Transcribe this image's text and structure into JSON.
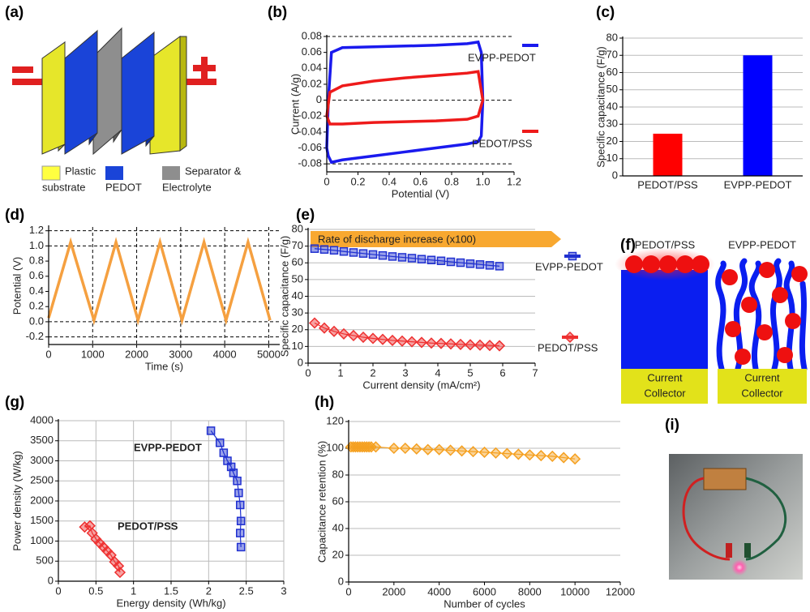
{
  "chart_data": [
    {
      "type": "line",
      "label": "(b)",
      "xlabel": "Potential (V)",
      "ylabel": "Current (A/g)",
      "xlim": [
        0,
        1.2
      ],
      "xticks": [
        0,
        0.2,
        0.4,
        0.6,
        0.8,
        {
          "value": 1,
          "label": "1.0"
        },
        1.2
      ],
      "ylim": [
        -0.09,
        0.08
      ],
      "yticks": [
        -0.08,
        -0.06,
        -0.04,
        -0.02,
        0,
        0.02,
        0.04,
        0.06,
        0.08
      ],
      "reference_lines": [
        0.08,
        0,
        -0.08
      ],
      "series": [
        {
          "name": "EVPP-PEDOT",
          "color": "#1a1aee",
          "x": [
            0,
            0.01,
            0.03,
            0.1,
            0.3,
            0.5,
            0.7,
            0.9,
            0.97,
            0.99,
            1.0,
            0.99,
            0.97,
            0.9,
            0.7,
            0.5,
            0.3,
            0.1,
            0.03,
            0.01,
            0
          ],
          "values": [
            -0.06,
            0.0,
            0.06,
            0.066,
            0.067,
            0.068,
            0.069,
            0.071,
            0.073,
            0.06,
            0.0,
            -0.045,
            -0.052,
            -0.055,
            -0.06,
            -0.065,
            -0.07,
            -0.075,
            -0.078,
            -0.07,
            -0.06
          ]
        },
        {
          "name": "PEDOT/PSS",
          "color": "#ee1a1a",
          "x": [
            0,
            0.02,
            0.1,
            0.3,
            0.5,
            0.7,
            0.9,
            0.97,
            1.0,
            0.97,
            0.9,
            0.7,
            0.5,
            0.3,
            0.1,
            0.02,
            0
          ],
          "values": [
            -0.02,
            0.01,
            0.018,
            0.024,
            0.028,
            0.031,
            0.034,
            0.036,
            0.0,
            -0.02,
            -0.024,
            -0.026,
            -0.027,
            -0.028,
            -0.03,
            -0.03,
            -0.02
          ]
        }
      ]
    },
    {
      "type": "bar",
      "label": "(c)",
      "ylabel": "Specific capacitance (F/g)",
      "categories": [
        "PEDOT/PSS",
        "EVPP-PEDOT"
      ],
      "values": [
        24.5,
        70
      ],
      "colors": [
        "#ff0000",
        "#0000ff"
      ],
      "ylim": [
        0,
        80
      ],
      "yticks": [
        0,
        10,
        20,
        30,
        40,
        50,
        60,
        70,
        80
      ],
      "grid": "y"
    },
    {
      "type": "line",
      "label": "(d)",
      "xlabel": "Time (s)",
      "ylabel": "Potential (V)",
      "xlim": [
        0,
        5250
      ],
      "xticks": [
        0,
        1000,
        2000,
        3000,
        4000,
        5000
      ],
      "ylim": [
        -0.3,
        1.25
      ],
      "yticks": [
        -0.2,
        {
          "value": 0,
          "label": "0.0"
        },
        0.2,
        0.4,
        0.6,
        0.8,
        {
          "value": 1,
          "label": "1.0"
        },
        1.2
      ],
      "grid": "x",
      "reference_lines": [
        1.2,
        1,
        0,
        -0.2
      ],
      "series": [
        {
          "color": "#f5a040",
          "x": [
            0,
            500,
            1030,
            1530,
            2030,
            2530,
            3030,
            3530,
            4030,
            4530,
            5030
          ],
          "values": [
            0.05,
            1.05,
            0.02,
            1.05,
            0.02,
            1.05,
            0.02,
            1.05,
            0.02,
            1.05,
            0.02
          ]
        }
      ]
    },
    {
      "type": "line",
      "label": "(e)",
      "xlabel": "Current density (mA/cm²)",
      "ylabel": "Specific capacitance (F/g)",
      "annotation": "Rate of discharge increase (x100)",
      "xlim": [
        0,
        7
      ],
      "xticks": [
        0,
        1,
        2,
        3,
        4,
        5,
        6,
        7
      ],
      "ylim": [
        0,
        80
      ],
      "yticks": [
        0,
        10,
        20,
        30,
        40,
        50,
        60,
        70,
        80
      ],
      "grid": "y",
      "series": [
        {
          "name": "EVPP-PEDOT",
          "color": "#2030d0",
          "marker": "square",
          "x": [
            0.2,
            0.5,
            0.8,
            1.1,
            1.4,
            1.7,
            2.0,
            2.3,
            2.6,
            2.9,
            3.2,
            3.5,
            3.8,
            4.1,
            4.4,
            4.7,
            5.0,
            5.3,
            5.6,
            5.9
          ],
          "values": [
            68.5,
            68,
            67.5,
            66.8,
            66.2,
            65.6,
            65,
            64.4,
            63.8,
            63.3,
            62.8,
            62.2,
            61.7,
            61.2,
            60.6,
            60.1,
            59.5,
            59,
            58.5,
            58
          ]
        },
        {
          "name": "PEDOT/PSS",
          "color": "#ee3030",
          "marker": "diamond",
          "x": [
            0.2,
            0.5,
            0.8,
            1.1,
            1.4,
            1.7,
            2.0,
            2.3,
            2.6,
            2.9,
            3.2,
            3.5,
            3.8,
            4.1,
            4.4,
            4.7,
            5.0,
            5.3,
            5.6,
            5.9
          ],
          "values": [
            24,
            21,
            19,
            17.5,
            16.5,
            15.5,
            14.8,
            14.2,
            13.6,
            13.2,
            12.8,
            12.4,
            12,
            11.8,
            11.5,
            11.2,
            11,
            10.8,
            10.6,
            10.4
          ]
        }
      ]
    },
    {
      "type": "line",
      "label": "(g)",
      "xlabel": "Energy density (Wh/kg)",
      "ylabel": "Power density (W/kg)",
      "xlim": [
        0,
        3
      ],
      "xticks": [
        0,
        0.5,
        1,
        1.5,
        2,
        2.5,
        3
      ],
      "ylim": [
        0,
        4000
      ],
      "yticks": [
        0,
        500,
        1000,
        1500,
        2000,
        2500,
        3000,
        3500,
        4000
      ],
      "grid": "both",
      "series": [
        {
          "name": "EVPP-PEDOT",
          "color": "#2030d0",
          "marker": "square",
          "x": [
            2.03,
            2.15,
            2.2,
            2.25,
            2.3,
            2.33,
            2.38,
            2.4,
            2.42,
            2.43,
            2.42,
            2.43
          ],
          "values": [
            3750,
            3450,
            3200,
            3000,
            2850,
            2700,
            2500,
            2200,
            1900,
            1500,
            1200,
            850
          ]
        },
        {
          "name": "PEDOT/PSS",
          "color": "#ee3030",
          "marker": "diamond",
          "x": [
            0.35,
            0.42,
            0.45,
            0.5,
            0.55,
            0.6,
            0.65,
            0.7,
            0.75,
            0.8,
            0.82
          ],
          "values": [
            1350,
            1380,
            1200,
            1050,
            950,
            850,
            750,
            650,
            480,
            380,
            220
          ]
        }
      ]
    },
    {
      "type": "line",
      "label": "(h)",
      "xlabel": "Number of cycles",
      "ylabel": "Capacitance retention (%)",
      "xlim": [
        0,
        12000
      ],
      "xticks": [
        0,
        2000,
        4000,
        6000,
        8000,
        10000,
        12000
      ],
      "ylim": [
        0,
        120
      ],
      "yticks": [
        0,
        20,
        40,
        60,
        80,
        100,
        120
      ],
      "grid": "y",
      "series": [
        {
          "color": "#f5a020",
          "marker": "diamond",
          "x": [
            100,
            200,
            300,
            400,
            500,
            600,
            700,
            800,
            900,
            1000,
            1200,
            2000,
            2500,
            3000,
            3500,
            4000,
            4500,
            5000,
            5500,
            6000,
            6500,
            7000,
            7500,
            8000,
            8500,
            9000,
            9500,
            10000
          ],
          "values": [
            101,
            101,
            101,
            101,
            101,
            101,
            101,
            101,
            101,
            101,
            101,
            100,
            100,
            99.5,
            99,
            99,
            98.5,
            98,
            97.5,
            97,
            96.5,
            96,
            95.5,
            95,
            94.5,
            94,
            93,
            92
          ]
        }
      ]
    }
  ],
  "diagrams": {
    "a": {
      "label": "(a)",
      "legend": [
        {
          "lines": [
            "Plastic",
            "substrate"
          ]
        },
        {
          "lines": [
            "PEDOT"
          ]
        },
        {
          "lines": [
            "Separator &",
            "Electrolyte"
          ]
        }
      ]
    },
    "f": {
      "label": "(f)",
      "left": "PEDOT/PSS",
      "right": "EVPP-PEDOT",
      "collector": [
        "Current",
        "Collector"
      ]
    },
    "i": {
      "label": "(i)"
    }
  }
}
